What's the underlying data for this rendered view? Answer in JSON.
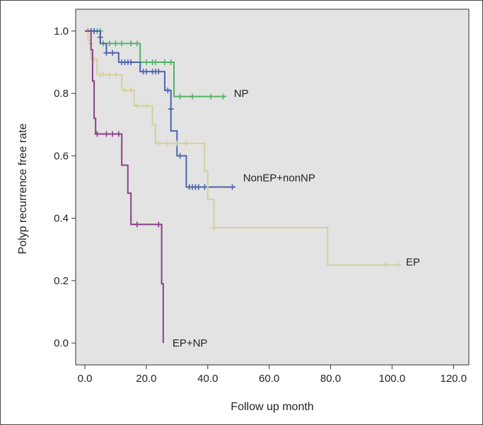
{
  "chart_data": {
    "type": "line",
    "step": true,
    "xlabel": "Follow up month",
    "ylabel": "Polyp recurrence free rate",
    "xlim": [
      -3,
      125
    ],
    "ylim": [
      -0.07,
      1.07
    ],
    "xticks": [
      0,
      20,
      40,
      60,
      80,
      100,
      120
    ],
    "xtick_labels": [
      "0.0",
      "20.0",
      "40.0",
      "60.0",
      "80.0",
      "100.0",
      "120.0"
    ],
    "yticks": [
      0,
      0.2,
      0.4,
      0.6,
      0.8,
      1.0
    ],
    "ytick_labels": [
      "0.0",
      "0.2",
      "0.4",
      "0.6",
      "0.8",
      "1.0"
    ],
    "grid": false,
    "plot_background": "#e3e3e3",
    "series": [
      {
        "name": "NP",
        "color": "#4fb366",
        "steps": [
          [
            0,
            1.0
          ],
          [
            5,
            0.96
          ],
          [
            18,
            0.9
          ],
          [
            29,
            0.79
          ],
          [
            46,
            0.79
          ]
        ],
        "censored": [
          [
            1,
            1
          ],
          [
            2,
            1
          ],
          [
            3,
            1
          ],
          [
            4,
            1
          ],
          [
            5,
            1
          ],
          [
            6,
            0.96
          ],
          [
            8,
            0.96
          ],
          [
            10,
            0.96
          ],
          [
            12,
            0.96
          ],
          [
            15,
            0.96
          ],
          [
            17,
            0.96
          ],
          [
            20,
            0.9
          ],
          [
            22,
            0.9
          ],
          [
            23,
            0.9
          ],
          [
            26,
            0.9
          ],
          [
            28,
            0.9
          ],
          [
            31,
            0.79
          ],
          [
            35,
            0.79
          ],
          [
            41,
            0.79
          ],
          [
            45,
            0.79
          ]
        ]
      },
      {
        "name": "NonEP+nonNP",
        "color": "#4c63ad",
        "steps": [
          [
            0,
            1.0
          ],
          [
            5,
            0.96
          ],
          [
            7,
            0.93
          ],
          [
            11,
            0.9
          ],
          [
            18,
            0.87
          ],
          [
            26,
            0.81
          ],
          [
            28,
            0.68
          ],
          [
            30,
            0.6
          ],
          [
            33,
            0.5
          ],
          [
            49,
            0.5
          ]
        ],
        "censored": [
          [
            2,
            1
          ],
          [
            3,
            1
          ],
          [
            5,
            0.98
          ],
          [
            7,
            0.93
          ],
          [
            9,
            0.93
          ],
          [
            12,
            0.9
          ],
          [
            13,
            0.9
          ],
          [
            14,
            0.9
          ],
          [
            15,
            0.9
          ],
          [
            19,
            0.87
          ],
          [
            20,
            0.87
          ],
          [
            22,
            0.87
          ],
          [
            23,
            0.87
          ],
          [
            24,
            0.87
          ],
          [
            27,
            0.81
          ],
          [
            28,
            0.75
          ],
          [
            31,
            0.6
          ],
          [
            34,
            0.5
          ],
          [
            35,
            0.5
          ],
          [
            36,
            0.5
          ],
          [
            37,
            0.5
          ],
          [
            39,
            0.5
          ],
          [
            48,
            0.5
          ]
        ]
      },
      {
        "name": "EP",
        "color": "#d6cf9c",
        "steps": [
          [
            0,
            1.0
          ],
          [
            1,
            0.97
          ],
          [
            2,
            0.91
          ],
          [
            4,
            0.86
          ],
          [
            12,
            0.81
          ],
          [
            16,
            0.76
          ],
          [
            22,
            0.7
          ],
          [
            23,
            0.64
          ],
          [
            39,
            0.55
          ],
          [
            40,
            0.46
          ],
          [
            42,
            0.37
          ],
          [
            79,
            0.25
          ],
          [
            102,
            0.25
          ]
        ],
        "censored": [
          [
            2,
            0.96
          ],
          [
            3,
            0.91
          ],
          [
            5,
            0.86
          ],
          [
            6,
            0.86
          ],
          [
            8,
            0.86
          ],
          [
            10,
            0.86
          ],
          [
            13,
            0.81
          ],
          [
            15,
            0.81
          ],
          [
            17,
            0.76
          ],
          [
            20,
            0.76
          ],
          [
            24,
            0.64
          ],
          [
            27,
            0.64
          ],
          [
            30,
            0.64
          ],
          [
            33,
            0.64
          ],
          [
            42,
            0.37
          ],
          [
            98,
            0.25
          ],
          [
            102,
            0.25
          ]
        ]
      },
      {
        "name": "EP+NP",
        "color": "#8a3f8a",
        "steps": [
          [
            0,
            1.0
          ],
          [
            2,
            0.94
          ],
          [
            2.5,
            0.84
          ],
          [
            3,
            0.72
          ],
          [
            3.5,
            0.67
          ],
          [
            12,
            0.57
          ],
          [
            14,
            0.48
          ],
          [
            15,
            0.38
          ],
          [
            25,
            0.19
          ],
          [
            25.5,
            0.0
          ]
        ],
        "censored": [
          [
            4,
            0.67
          ],
          [
            7,
            0.67
          ],
          [
            9,
            0.67
          ],
          [
            11,
            0.67
          ],
          [
            17,
            0.38
          ],
          [
            24,
            0.38
          ]
        ]
      }
    ],
    "annotations": [
      {
        "text": "NP",
        "series": "NP",
        "at": [
          48.5,
          0.8
        ]
      },
      {
        "text": "NonEP+nonNP",
        "series": "NonEP+nonNP",
        "at": [
          51.5,
          0.53
        ]
      },
      {
        "text": "EP",
        "series": "EP",
        "at": [
          104.5,
          0.26
        ]
      },
      {
        "text": "EP+NP",
        "series": "EP+NP",
        "at": [
          28.5,
          0.0
        ]
      }
    ]
  }
}
